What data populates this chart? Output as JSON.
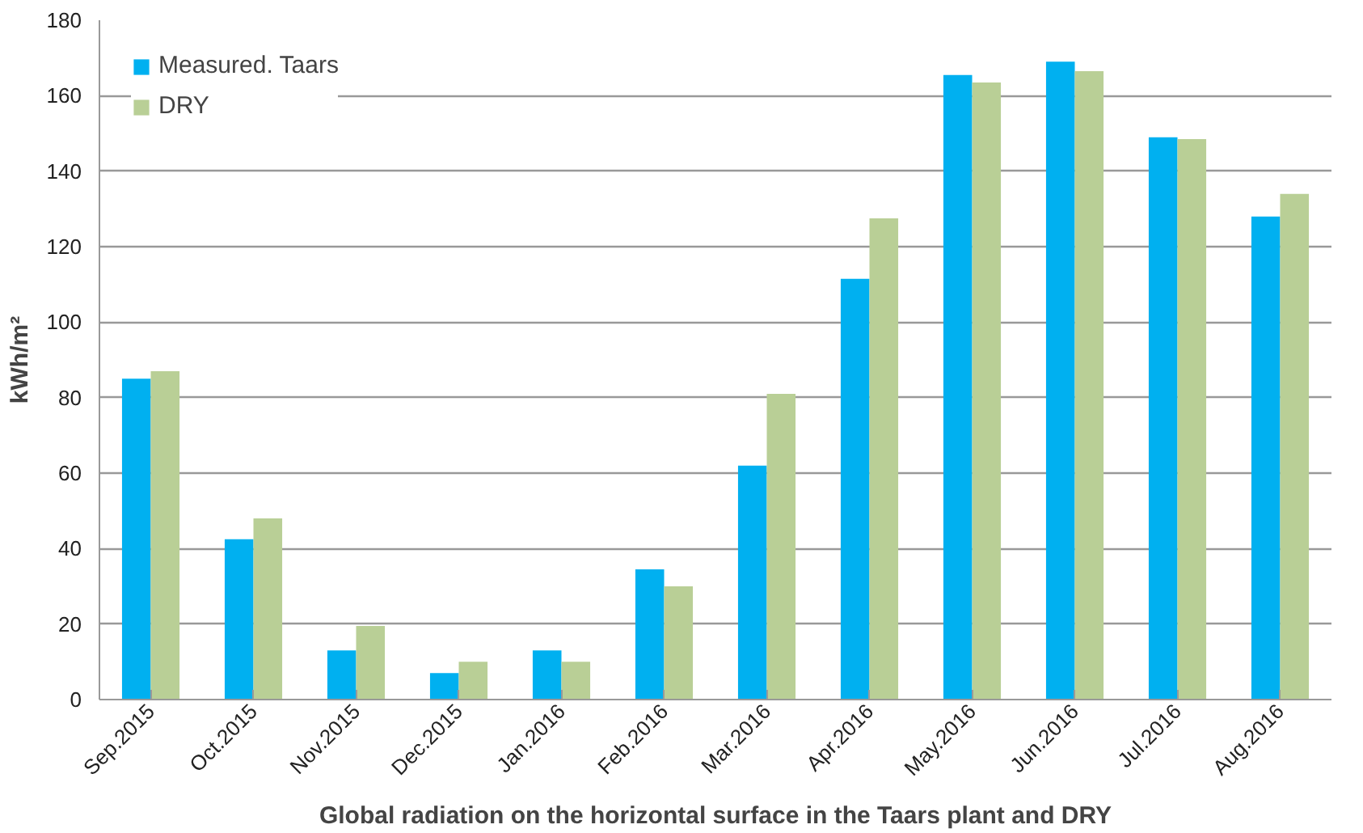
{
  "chart_data": {
    "type": "bar",
    "xlabel": "Global radiation on the horizontal surface in the Taars plant and DRY",
    "ylabel": "kWh/m²",
    "categories": [
      "Sep.2015",
      "Oct.2015",
      "Nov.2015",
      "Dec.2015",
      "Jan.2016",
      "Feb.2016",
      "Mar.2016",
      "Apr.2016",
      "May.2016",
      "Jun.2016",
      "Jul.2016",
      "Aug.2016"
    ],
    "series": [
      {
        "name": "Measured. Taars",
        "color": "#00b0f0",
        "values": [
          85,
          42.5,
          13,
          7,
          13,
          34.5,
          62,
          111.5,
          165.5,
          169,
          149,
          128
        ]
      },
      {
        "name": "DRY",
        "color": "#b9cf96",
        "values": [
          87,
          48,
          19.5,
          10,
          10,
          30,
          81,
          127.5,
          163.5,
          166.5,
          148.5,
          134
        ]
      }
    ],
    "ylim": [
      0,
      180
    ],
    "yticks": [
      0,
      20,
      40,
      60,
      80,
      100,
      120,
      140,
      160,
      180
    ],
    "grid": "y",
    "legend": "top left"
  }
}
